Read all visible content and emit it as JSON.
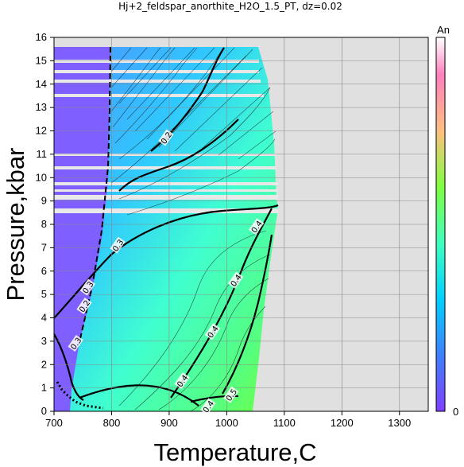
{
  "chart_data": {
    "type": "heatmap",
    "title": "Hj+2_feldspar_anorthite_H2O_1.5_PT, dz=0.02",
    "xlabel": "Temperature,C",
    "ylabel": "Pressure,kbar",
    "xlim": [
      700,
      1350
    ],
    "ylim": [
      0,
      16
    ],
    "x_ticks": [
      700,
      800,
      900,
      1000,
      1100,
      1200,
      1300
    ],
    "y_ticks": [
      0,
      1,
      2,
      3,
      4,
      5,
      6,
      7,
      8,
      9,
      10,
      11,
      12,
      13,
      14,
      15,
      16
    ],
    "grid": true,
    "colorbar": {
      "label": "An",
      "min": 0,
      "max_label": "",
      "min_label": "0",
      "colors": [
        "#7f3fff",
        "#3f7fff",
        "#00d0ff",
        "#3fffbf",
        "#7fff3f",
        "#ffbf7f",
        "#ff7fbf",
        "#ffffff"
      ]
    },
    "background_color": "#e0e0e0",
    "contour_labels": [
      {
        "text": "0.2",
        "x": 895,
        "y": 11.7
      },
      {
        "text": "0.3",
        "x": 811,
        "y": 7.1
      },
      {
        "text": "0.3",
        "x": 759,
        "y": 5.3
      },
      {
        "text": "0.2",
        "x": 753,
        "y": 4.5
      },
      {
        "text": "0.3",
        "x": 738,
        "y": 2.9
      },
      {
        "text": "0.4",
        "x": 1052,
        "y": 7.9
      },
      {
        "text": "0.4",
        "x": 1016,
        "y": 5.6
      },
      {
        "text": "0.4",
        "x": 976,
        "y": 3.4
      },
      {
        "text": "0.4",
        "x": 923,
        "y": 1.3
      },
      {
        "text": "0.5",
        "x": 1008,
        "y": 0.7
      },
      {
        "text": "0.4",
        "x": 968,
        "y": 0.2
      }
    ]
  }
}
